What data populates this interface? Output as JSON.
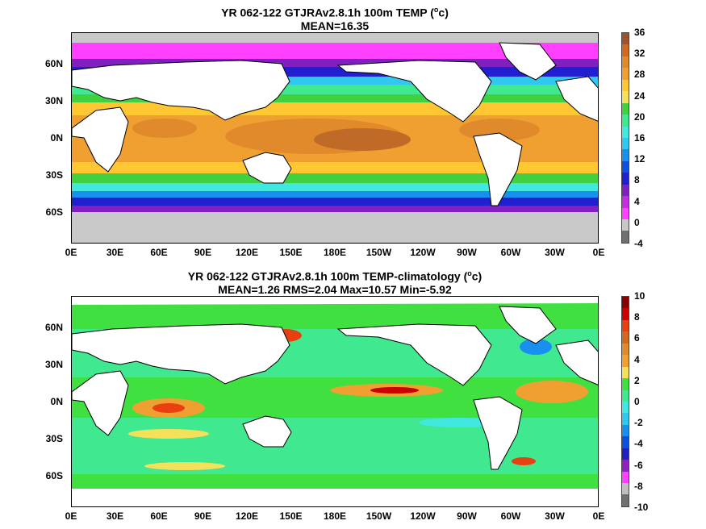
{
  "panels": [
    {
      "title_line1_prefix": "YR 062-122 GTJRAv2.8.1h 100m TEMP (",
      "title_line1_unit_sup": "o",
      "title_line1_unit": "c)",
      "title_line2": "MEAN=16.35",
      "colorbar_ticks": [
        "36",
        "32",
        "28",
        "24",
        "20",
        "16",
        "12",
        "8",
        "4",
        "0",
        "-4"
      ],
      "colorbar_colors": [
        "#a0522d",
        "#d2691e",
        "#e08a2c",
        "#f0a030",
        "#ffc832",
        "#f5e05a",
        "#40d040",
        "#40e890",
        "#40e8e0",
        "#30c8f0",
        "#1890f0",
        "#1050e0",
        "#2020d0",
        "#8020c0",
        "#c030e0",
        "#ff40ff",
        "#c8c8c8",
        "#707070"
      ]
    },
    {
      "title_line1_prefix": "YR 062-122 GTJRAv2.8.1h 100m TEMP-climatology (",
      "title_line1_unit_sup": "o",
      "title_line1_unit": "c)",
      "title_line2": "MEAN=1.26   RMS=2.04   Max=10.57   Min=-5.92",
      "colorbar_ticks": [
        "10",
        "8",
        "6",
        "4",
        "2",
        "0",
        "-2",
        "-4",
        "-6",
        "-8",
        "-10"
      ],
      "colorbar_colors": [
        "#8b0000",
        "#cc0000",
        "#e84010",
        "#d2691e",
        "#e08a2c",
        "#f0a030",
        "#f5e05a",
        "#40e040",
        "#40e890",
        "#40e8e0",
        "#30c8f0",
        "#1890f0",
        "#1050e0",
        "#2020c0",
        "#9020c0",
        "#ff40ff",
        "#c0c0c0",
        "#707070"
      ]
    }
  ],
  "y_axis_labels": [
    "60N",
    "30N",
    "0N",
    "30S",
    "60S"
  ],
  "x_axis_labels": [
    "0E",
    "30E",
    "60E",
    "90E",
    "120E",
    "150E",
    "180E",
    "150W",
    "120W",
    "90W",
    "60W",
    "30W",
    "0E"
  ]
}
